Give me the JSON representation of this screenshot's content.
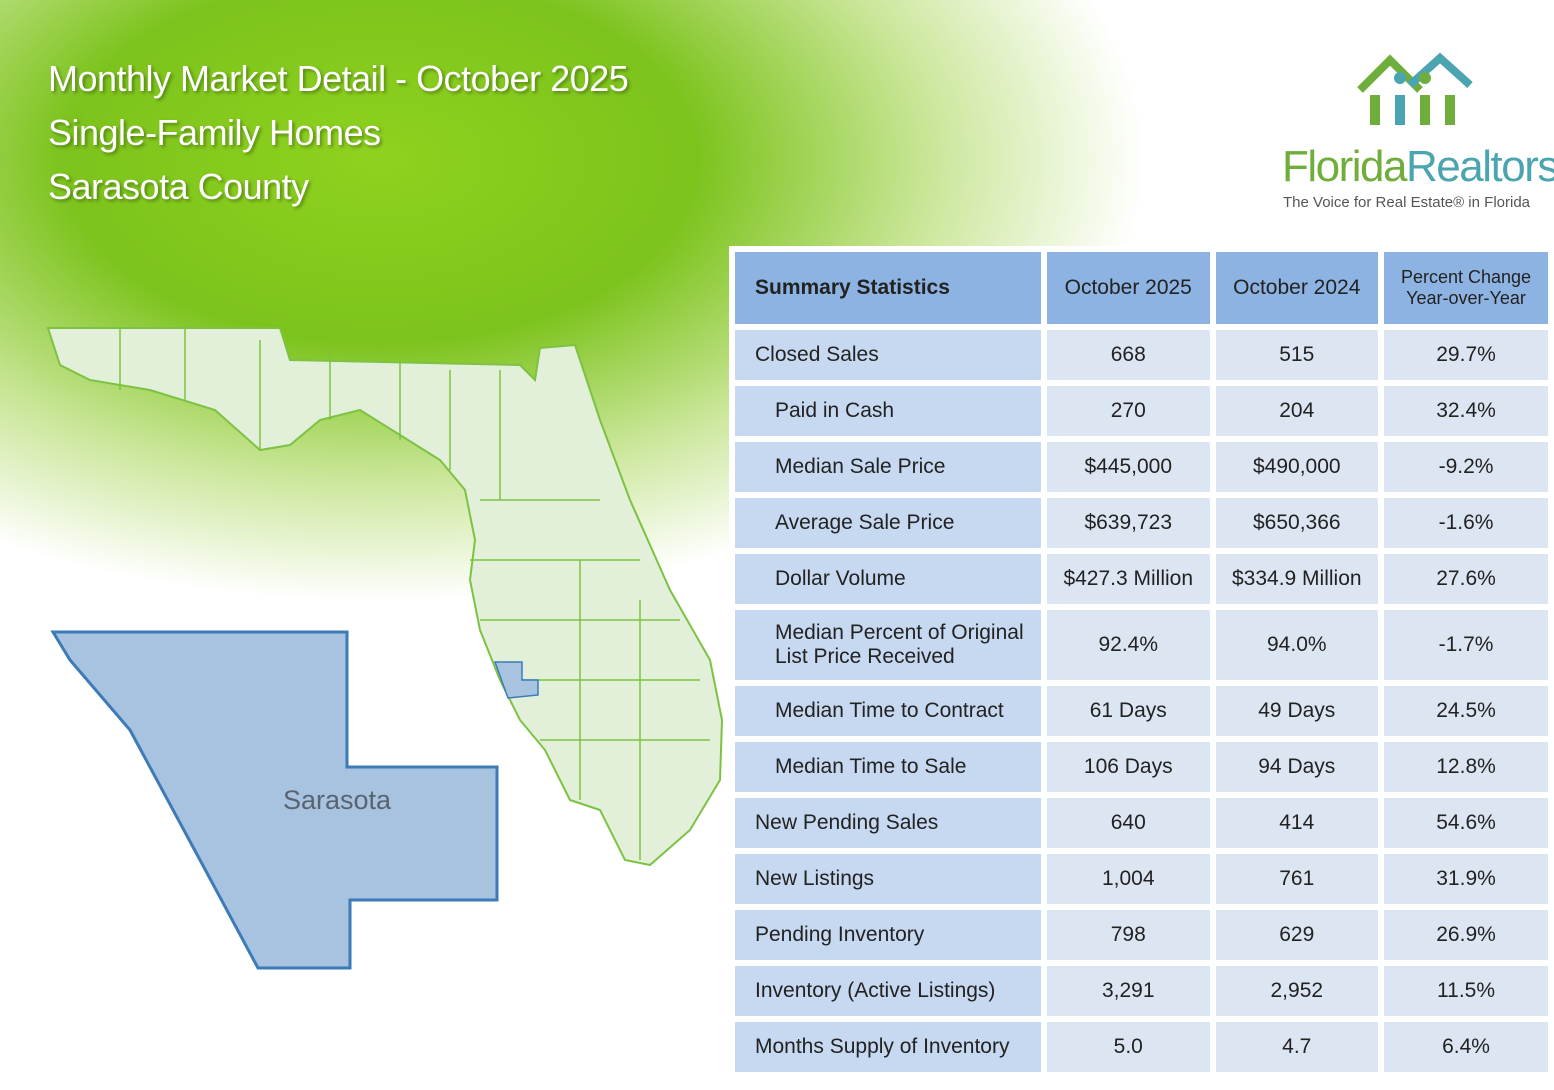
{
  "header": {
    "title": "Monthly Market Detail - October 2025",
    "subtitle": "Single-Family Homes",
    "region": "Sarasota County"
  },
  "logo": {
    "brand_first": "Florida",
    "brand_second": "Realtors",
    "tagline": "The Voice for Real Estate® in Florida"
  },
  "map": {
    "label": "Sarasota"
  },
  "table": {
    "columns": [
      "Summary Statistics",
      "October 2025",
      "October 2024",
      "Percent Change Year-over-Year"
    ],
    "rows": [
      [
        "Closed Sales",
        "668",
        "515",
        "29.7%"
      ],
      [
        "Paid in Cash",
        "270",
        "204",
        "32.4%"
      ],
      [
        "Median Sale Price",
        "$445,000",
        "$490,000",
        "-9.2%"
      ],
      [
        "Average Sale Price",
        "$639,723",
        "$650,366",
        "-1.6%"
      ],
      [
        "Dollar Volume",
        "$427.3 Million",
        "$334.9 Million",
        "27.6%"
      ],
      [
        "Median Percent of Original List Price Received",
        "92.4%",
        "94.0%",
        "-1.7%"
      ],
      [
        "Median Time to Contract",
        "61 Days",
        "49 Days",
        "24.5%"
      ],
      [
        "Median Time to Sale",
        "106 Days",
        "94 Days",
        "12.8%"
      ],
      [
        "New Pending Sales",
        "640",
        "414",
        "54.6%"
      ],
      [
        "New Listings",
        "1,004",
        "761",
        "31.9%"
      ],
      [
        "Pending Inventory",
        "798",
        "629",
        "26.9%"
      ],
      [
        "Inventory (Active Listings)",
        "3,291",
        "2,952",
        "11.5%"
      ],
      [
        "Months Supply of Inventory",
        "5.0",
        "4.7",
        "6.4%"
      ]
    ]
  }
}
